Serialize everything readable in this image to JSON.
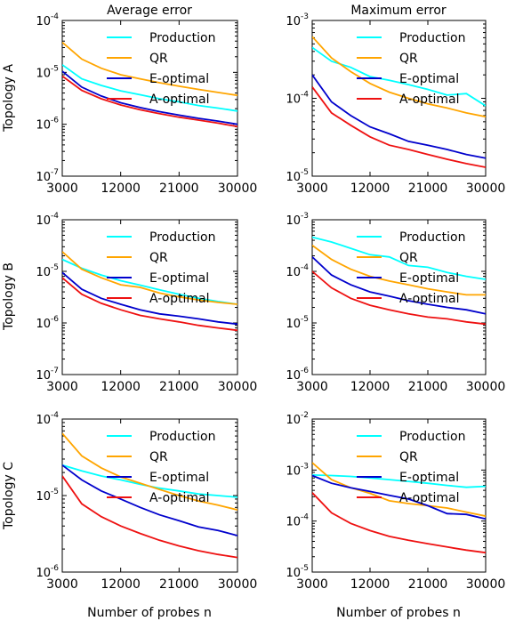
{
  "column_titles": [
    "Average error",
    "Maximum error"
  ],
  "row_labels": [
    "Topology A",
    "Topology B",
    "Topology C"
  ],
  "xlabel": "Number of probes n",
  "colors": {
    "Production": "#00ffff",
    "QR": "#ffa500",
    "E-optimal": "#0000cc",
    "A-optimal": "#ee1111"
  },
  "chart_data": [
    {
      "type": "line",
      "panel": "Topology A / Average error",
      "xscale": "linear",
      "yscale": "log",
      "xlim": [
        3000,
        30000
      ],
      "ylim": [
        1e-07,
        0.0001
      ],
      "xticks": [
        3000,
        12000,
        21000,
        30000
      ],
      "yticks": [
        1e-07,
        1e-06,
        1e-05,
        0.0001
      ],
      "legend": "top-right",
      "x": [
        3000,
        6000,
        9000,
        12000,
        15000,
        18000,
        21000,
        24000,
        27000,
        30000
      ],
      "series": [
        {
          "name": "Production",
          "values": [
            1.4e-05,
            7.5e-06,
            5.6e-06,
            4.4e-06,
            3.7e-06,
            3.1e-06,
            2.7e-06,
            2.3e-06,
            2.05e-06,
            1.8e-06
          ]
        },
        {
          "name": "QR",
          "values": [
            3.8e-05,
            1.8e-05,
            1.2e-05,
            9e-06,
            7.5e-06,
            6.3e-06,
            5.4e-06,
            4.7e-06,
            4.1e-06,
            3.6e-06
          ]
        },
        {
          "name": "E-optimal",
          "values": [
            1.05e-05,
            5.2e-06,
            3.5e-06,
            2.6e-06,
            2.1e-06,
            1.75e-06,
            1.5e-06,
            1.3e-06,
            1.15e-06,
            1e-06
          ]
        },
        {
          "name": "A-optimal",
          "values": [
            8.5e-06,
            4.5e-06,
            3.1e-06,
            2.35e-06,
            1.9e-06,
            1.6e-06,
            1.37e-06,
            1.2e-06,
            1.05e-06,
            9e-07
          ]
        }
      ]
    },
    {
      "type": "line",
      "panel": "Topology A / Maximum error",
      "xscale": "linear",
      "yscale": "log",
      "xlim": [
        3000,
        30000
      ],
      "ylim": [
        1e-05,
        0.001
      ],
      "xticks": [
        3000,
        12000,
        21000,
        30000
      ],
      "yticks": [
        1e-05,
        0.0001,
        0.001
      ],
      "legend": "top-right",
      "x": [
        3000,
        6000,
        9000,
        12000,
        15000,
        18000,
        21000,
        24000,
        27000,
        30000
      ],
      "series": [
        {
          "name": "Production",
          "values": [
            0.00045,
            0.0003,
            0.00025,
            0.00019,
            0.00017,
            0.00015,
            0.00013,
            0.00011,
            0.000115,
            8e-05
          ]
        },
        {
          "name": "QR",
          "values": [
            0.00062,
            0.00033,
            0.00022,
            0.000155,
            0.00012,
            0.0001,
            8.5e-05,
            7.5e-05,
            6.5e-05,
            5.8e-05
          ]
        },
        {
          "name": "E-optimal",
          "values": [
            0.0002,
            9e-05,
            6e-05,
            4.3e-05,
            3.5e-05,
            2.8e-05,
            2.5e-05,
            2.2e-05,
            1.9e-05,
            1.7e-05
          ]
        },
        {
          "name": "A-optimal",
          "values": [
            0.00014,
            6.5e-05,
            4.5e-05,
            3.2e-05,
            2.5e-05,
            2.2e-05,
            1.9e-05,
            1.65e-05,
            1.45e-05,
            1.3e-05
          ]
        }
      ]
    },
    {
      "type": "line",
      "panel": "Topology B / Average error",
      "xscale": "linear",
      "yscale": "log",
      "xlim": [
        3000,
        30000
      ],
      "ylim": [
        1e-07,
        0.0001
      ],
      "xticks": [
        3000,
        12000,
        21000,
        30000
      ],
      "yticks": [
        1e-07,
        1e-06,
        1e-05,
        0.0001
      ],
      "legend": "top-right",
      "x": [
        3000,
        6000,
        9000,
        12000,
        15000,
        18000,
        21000,
        24000,
        27000,
        30000
      ],
      "series": [
        {
          "name": "Production",
          "values": [
            1.7e-05,
            1.15e-05,
            8.5e-06,
            6.6e-06,
            5.4e-06,
            4.4e-06,
            3.6e-06,
            3e-06,
            2.6e-06,
            2.3e-06
          ]
        },
        {
          "name": "QR",
          "values": [
            2.4e-05,
            1.1e-05,
            7.5e-06,
            5.5e-06,
            4.9e-06,
            3.8e-06,
            3.2e-06,
            2.8e-06,
            2.5e-06,
            2.3e-06
          ]
        },
        {
          "name": "E-optimal",
          "values": [
            9.5e-06,
            4.5e-06,
            3e-06,
            2.3e-06,
            1.8e-06,
            1.5e-06,
            1.35e-06,
            1.2e-06,
            1.05e-06,
            9.5e-07
          ]
        },
        {
          "name": "A-optimal",
          "values": [
            7.5e-06,
            3.6e-06,
            2.4e-06,
            1.8e-06,
            1.4e-06,
            1.2e-06,
            1.05e-06,
            9e-07,
            8e-07,
            7.2e-07
          ]
        }
      ]
    },
    {
      "type": "line",
      "panel": "Topology B / Maximum error",
      "xscale": "linear",
      "yscale": "log",
      "xlim": [
        3000,
        30000
      ],
      "ylim": [
        1e-06,
        0.001
      ],
      "xticks": [
        3000,
        12000,
        21000,
        30000
      ],
      "yticks": [
        1e-06,
        1e-05,
        0.0001,
        0.001
      ],
      "legend": "top-right",
      "x": [
        3000,
        6000,
        9000,
        12000,
        15000,
        18000,
        21000,
        24000,
        27000,
        30000
      ],
      "series": [
        {
          "name": "Production",
          "values": [
            0.00046,
            0.00037,
            0.00028,
            0.00021,
            0.00019,
            0.00013,
            0.00012,
            9.5e-05,
            8e-05,
            7e-05
          ]
        },
        {
          "name": "QR",
          "values": [
            0.00032,
            0.00017,
            0.00011,
            8e-05,
            6.5e-05,
            5.5e-05,
            4.6e-05,
            4e-05,
            3.5e-05,
            3.5e-05
          ]
        },
        {
          "name": "E-optimal",
          "values": [
            0.00019,
            8.5e-05,
            5.5e-05,
            4e-05,
            3.3e-05,
            2.7e-05,
            2.3e-05,
            2e-05,
            1.8e-05,
            1.5e-05
          ]
        },
        {
          "name": "A-optimal",
          "values": [
            0.0001,
            4.8e-05,
            3e-05,
            2.2e-05,
            1.8e-05,
            1.5e-05,
            1.3e-05,
            1.2e-05,
            1.05e-05,
            9.5e-06
          ]
        }
      ]
    },
    {
      "type": "line",
      "panel": "Topology C / Average error",
      "xscale": "linear",
      "yscale": "log",
      "xlim": [
        3000,
        30000
      ],
      "ylim": [
        1e-06,
        0.0001
      ],
      "xticks": [
        3000,
        12000,
        21000,
        30000
      ],
      "yticks": [
        1e-06,
        1e-05,
        0.0001
      ],
      "legend": "top-right",
      "x": [
        3000,
        6000,
        9000,
        12000,
        15000,
        18000,
        21000,
        24000,
        27000,
        30000
      ],
      "series": [
        {
          "name": "Production",
          "values": [
            2.5e-05,
            2.1e-05,
            1.8e-05,
            1.6e-05,
            1.4e-05,
            1.25e-05,
            1.15e-05,
            1.05e-05,
            1e-05,
            9.5e-06
          ]
        },
        {
          "name": "QR",
          "values": [
            6.5e-05,
            3.3e-05,
            2.3e-05,
            1.75e-05,
            1.45e-05,
            1.2e-05,
            1e-05,
            8.5e-06,
            7.5e-06,
            6.5e-06
          ]
        },
        {
          "name": "E-optimal",
          "values": [
            2.5e-05,
            1.6e-05,
            1.15e-05,
            9e-06,
            7e-06,
            5.6e-06,
            4.7e-06,
            3.9e-06,
            3.5e-06,
            3e-06
          ]
        },
        {
          "name": "A-optimal",
          "values": [
            1.8e-05,
            7.8e-06,
            5.3e-06,
            4e-06,
            3.2e-06,
            2.6e-06,
            2.2e-06,
            1.9e-06,
            1.7e-06,
            1.55e-06
          ]
        }
      ]
    },
    {
      "type": "line",
      "panel": "Topology C / Maximum error",
      "xscale": "linear",
      "yscale": "log",
      "xlim": [
        3000,
        30000
      ],
      "ylim": [
        1e-05,
        0.01
      ],
      "xticks": [
        3000,
        12000,
        21000,
        30000
      ],
      "yticks": [
        1e-05,
        0.0001,
        0.001,
        0.01
      ],
      "legend": "top-right",
      "x": [
        3000,
        6000,
        9000,
        12000,
        15000,
        18000,
        21000,
        24000,
        27000,
        30000
      ],
      "series": [
        {
          "name": "Production",
          "values": [
            0.0008,
            0.00078,
            0.00075,
            0.0007,
            0.00065,
            0.0006,
            0.00055,
            0.0005,
            0.00046,
            0.00048
          ]
        },
        {
          "name": "QR",
          "values": [
            0.0014,
            0.00065,
            0.00045,
            0.00035,
            0.00025,
            0.00022,
            0.0002,
            0.00018,
            0.00015,
            0.000125
          ]
        },
        {
          "name": "E-optimal",
          "values": [
            0.00078,
            0.00055,
            0.00045,
            0.00038,
            0.00032,
            0.00027,
            0.0002,
            0.00014,
            0.000135,
            0.00011
          ]
        },
        {
          "name": "A-optimal",
          "values": [
            0.00036,
            0.000145,
            9e-05,
            6.5e-05,
            5e-05,
            4.2e-05,
            3.6e-05,
            3.1e-05,
            2.7e-05,
            2.4e-05
          ]
        }
      ]
    }
  ]
}
